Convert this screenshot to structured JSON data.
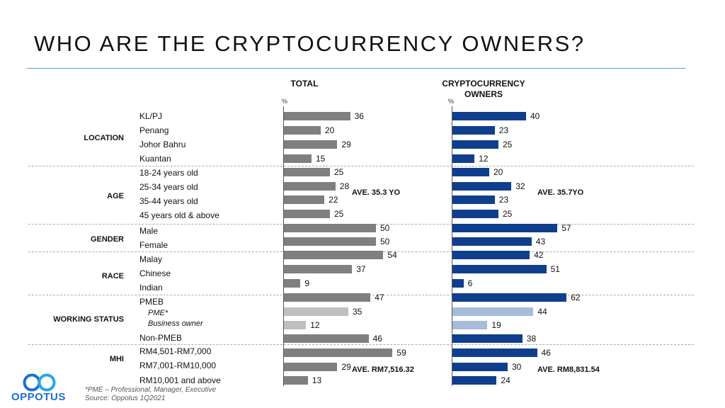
{
  "title": "WHO ARE THE CRYPTOCURRENCY OWNERS?",
  "col_total": "TOTAL",
  "col_crypto_line1": "CRYPTOCURRENCY",
  "col_crypto_line2": "OWNERS",
  "pct_symbol": "%",
  "colors": {
    "total": "#7f7f7f",
    "total_light": "#bfbfbf",
    "crypto": "#0f3f8c",
    "crypto_light": "#a6bcd8",
    "rule": "#4aa3d8"
  },
  "groups": [
    "LOCATION",
    "AGE",
    "GENDER",
    "RACE",
    "WORKING STATUS",
    "MHI"
  ],
  "chart_data": {
    "type": "bar",
    "orientation": "horizontal",
    "unit": "%",
    "categories": [
      "KL/PJ",
      "Penang",
      "Johor Bahru",
      "Kuantan",
      "18-24 years old",
      "25-34 years old",
      "35-44 years old",
      "45 years old & above",
      "Male",
      "Female",
      "Malay",
      "Chinese",
      "Indian",
      "PMEB",
      "PME*",
      "Business owner",
      "Non-PMEB",
      "RM4,501-RM7,000",
      "RM7,001-RM10,000",
      "RM10,001 and above"
    ],
    "category_groups": [
      "LOCATION",
      "LOCATION",
      "LOCATION",
      "LOCATION",
      "AGE",
      "AGE",
      "AGE",
      "AGE",
      "GENDER",
      "GENDER",
      "RACE",
      "RACE",
      "RACE",
      "WORKING STATUS",
      "WORKING STATUS",
      "WORKING STATUS",
      "WORKING STATUS",
      "MHI",
      "MHI",
      "MHI"
    ],
    "sub_rows": [
      "PME*",
      "Business owner"
    ],
    "series": [
      {
        "name": "TOTAL",
        "values": [
          36,
          20,
          29,
          15,
          25,
          28,
          22,
          25,
          50,
          50,
          54,
          37,
          9,
          47,
          35,
          12,
          46,
          59,
          29,
          13
        ]
      },
      {
        "name": "CRYPTOCURRENCY OWNERS",
        "values": [
          40,
          23,
          25,
          12,
          20,
          32,
          23,
          25,
          57,
          43,
          42,
          51,
          6,
          62,
          44,
          19,
          38,
          46,
          30,
          24
        ]
      }
    ],
    "xlim": [
      0,
      100
    ],
    "annotations": {
      "total_age": "AVE. 35.3 YO",
      "crypto_age": "AVE. 35.7YO",
      "total_mhi": "AVE. RM7,516.32",
      "crypto_mhi": "AVE. RM8,831.54"
    }
  },
  "footnote": "*PME – Professional, Manager, Executive",
  "source": "Source: Oppotus 1Q2021",
  "logo_text": "OPPOTUS"
}
